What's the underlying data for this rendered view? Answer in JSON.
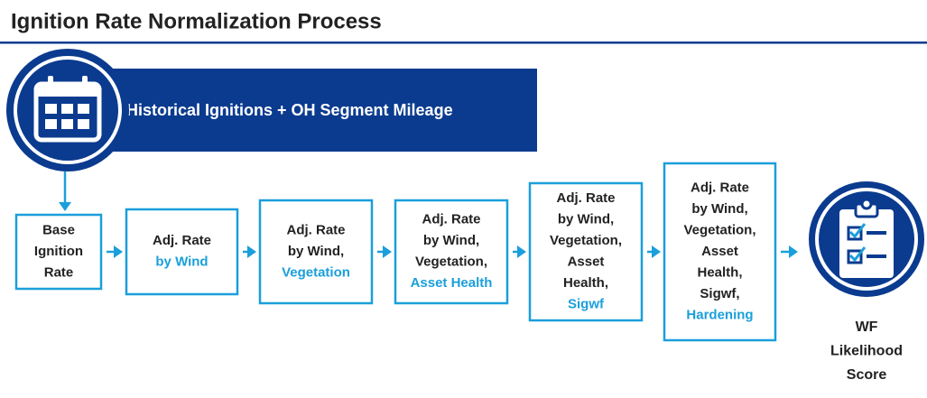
{
  "title": "Ignition Rate Normalization Process",
  "banner": "Historical Ignitions + OH Segment Mileage",
  "boxes": [
    {
      "lines": [
        "Base",
        "Ignition",
        "Rate"
      ],
      "highlight": []
    },
    {
      "lines": [
        "Adj. Rate"
      ],
      "highlight": [
        "by Wind"
      ]
    },
    {
      "lines": [
        "Adj. Rate",
        "by Wind,"
      ],
      "highlight": [
        "Vegetation"
      ]
    },
    {
      "lines": [
        "Adj. Rate",
        "by Wind,",
        "Vegetation,"
      ],
      "highlight": [
        "Asset Health"
      ]
    },
    {
      "lines": [
        "Adj. Rate",
        "by Wind,",
        "Vegetation,",
        "Asset",
        "Health,"
      ],
      "highlight": [
        "Sigwf"
      ]
    },
    {
      "lines": [
        "Adj. Rate",
        "by Wind,",
        "Vegetation,",
        "Asset",
        "Health,",
        "Sigwf,"
      ],
      "highlight": [
        "Hardening"
      ]
    }
  ],
  "result": [
    "WF",
    "Likelihood",
    "Score"
  ]
}
